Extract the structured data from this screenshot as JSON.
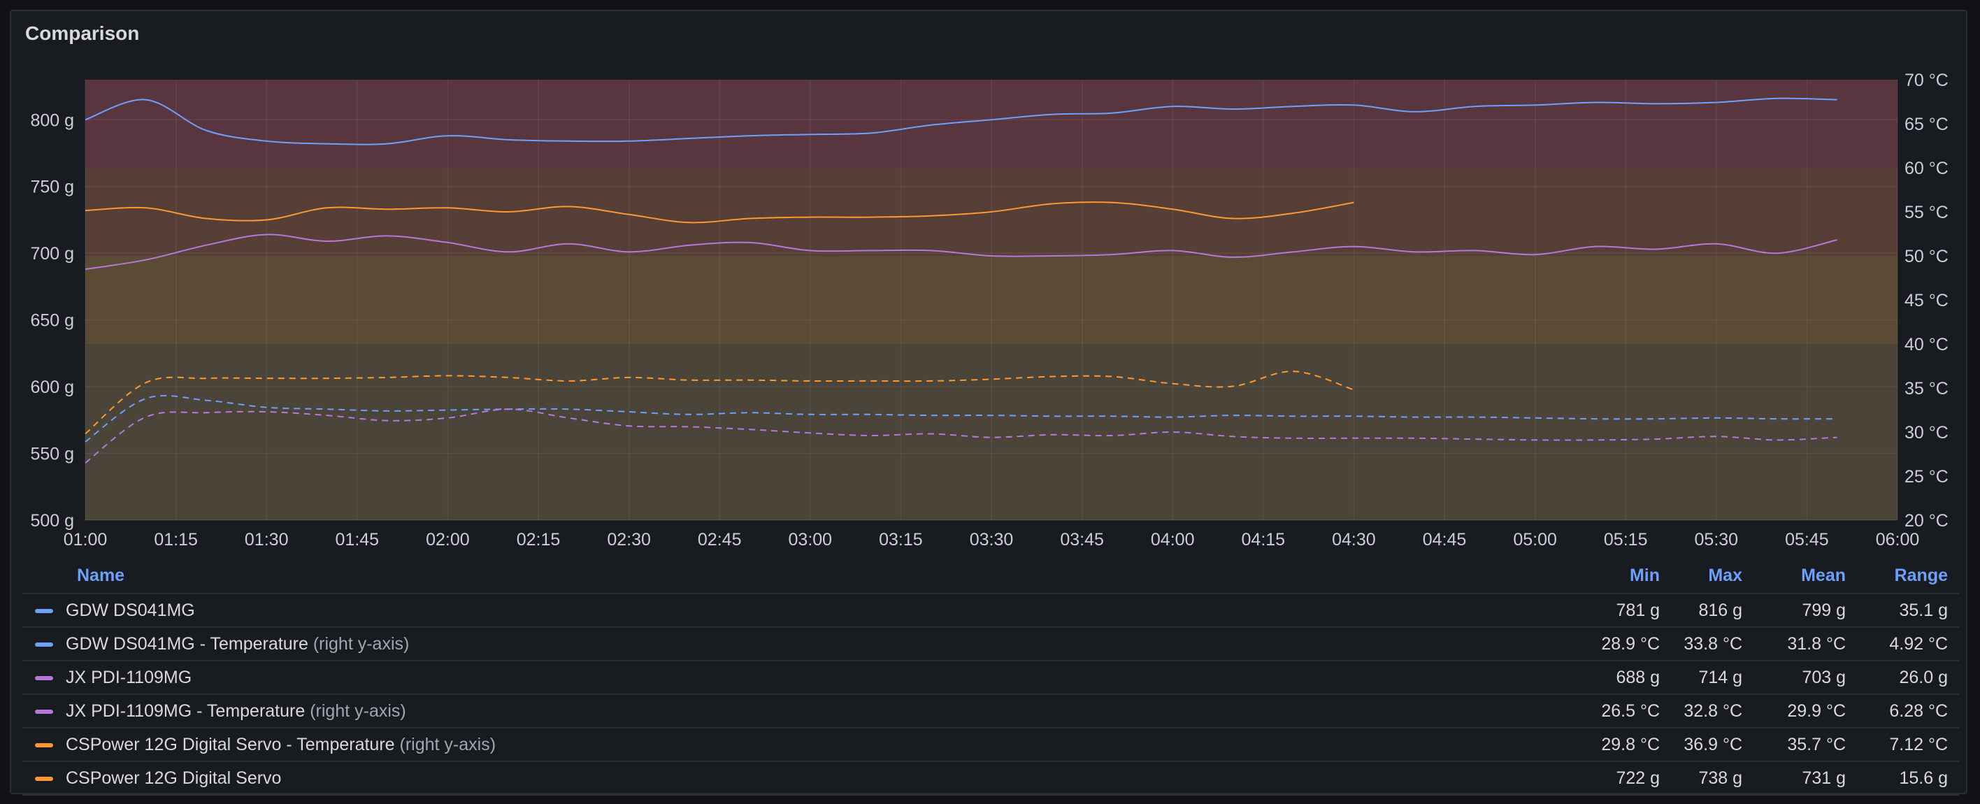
{
  "panel": {
    "title": "Comparison"
  },
  "legend": {
    "headers": {
      "name": "Name",
      "min": "Min",
      "max": "Max",
      "mean": "Mean",
      "range": "Range"
    },
    "rows": [
      {
        "name": "GDW DS041MG",
        "suffix": "",
        "color": "#6e9fff",
        "min": "781 g",
        "max": "816 g",
        "mean": "799 g",
        "range": "35.1 g"
      },
      {
        "name": "GDW DS041MG - Temperature",
        "suffix": "(right y-axis)",
        "color": "#6e9fff",
        "min": "28.9 °C",
        "max": "33.8 °C",
        "mean": "31.8 °C",
        "range": "4.92 °C"
      },
      {
        "name": "JX PDI-1109MG",
        "suffix": "",
        "color": "#b877d9",
        "min": "688 g",
        "max": "714 g",
        "mean": "703 g",
        "range": "26.0 g"
      },
      {
        "name": "JX PDI-1109MG - Temperature",
        "suffix": "(right y-axis)",
        "color": "#b877d9",
        "min": "26.5 °C",
        "max": "32.8 °C",
        "mean": "29.9 °C",
        "range": "6.28 °C"
      },
      {
        "name": "CSPower 12G Digital Servo - Temperature",
        "suffix": "(right y-axis)",
        "color": "#ff9830",
        "min": "29.8 °C",
        "max": "36.9 °C",
        "mean": "35.7 °C",
        "range": "7.12 °C"
      },
      {
        "name": "CSPower 12G Digital Servo",
        "suffix": "",
        "color": "#ff9830",
        "min": "722 g",
        "max": "738 g",
        "mean": "731 g",
        "range": "15.6 g"
      }
    ]
  },
  "chart_data": {
    "type": "line",
    "x_ticks": [
      "01:00",
      "01:15",
      "01:30",
      "01:45",
      "02:00",
      "02:15",
      "02:30",
      "02:45",
      "03:00",
      "03:15",
      "03:30",
      "03:45",
      "04:00",
      "04:15",
      "04:30",
      "04:45",
      "05:00",
      "05:15",
      "05:30",
      "05:45",
      "06:00"
    ],
    "x_range": [
      "01:00",
      "06:00"
    ],
    "y_left": {
      "ticks": [
        "500 g",
        "550 g",
        "600 g",
        "650 g",
        "700 g",
        "750 g",
        "800 g"
      ],
      "min": 500,
      "max": 830,
      "unit": "g"
    },
    "y_right": {
      "ticks": [
        "20 °C",
        "25 °C",
        "30 °C",
        "35 °C",
        "40 °C",
        "45 °C",
        "50 °C",
        "55 °C",
        "60 °C",
        "65 °C",
        "70 °C"
      ],
      "min": 20,
      "max": 70,
      "unit": "°C"
    },
    "threshold_bands": [
      {
        "axis": "right",
        "from": 20,
        "to": 40,
        "color": "#4a4538"
      },
      {
        "axis": "right",
        "from": 40,
        "to": 50,
        "color": "#5b4b35"
      },
      {
        "axis": "right",
        "from": 50,
        "to": 60,
        "color": "#573e37"
      },
      {
        "axis": "right",
        "from": 60,
        "to": 70,
        "color": "#593540"
      }
    ],
    "grid": true,
    "series": [
      {
        "name": "GDW DS041MG",
        "axis": "left",
        "style": "solid",
        "color": "#6e9fff",
        "x": [
          "01:00",
          "01:10",
          "01:20",
          "01:30",
          "01:40",
          "01:50",
          "02:00",
          "02:10",
          "02:20",
          "02:30",
          "02:40",
          "02:50",
          "03:00",
          "03:10",
          "03:20",
          "03:30",
          "03:40",
          "03:50",
          "04:00",
          "04:10",
          "04:20",
          "04:30",
          "04:40",
          "04:50",
          "05:00",
          "05:10",
          "05:20",
          "05:30",
          "05:40",
          "05:50"
        ],
        "y": [
          800,
          815,
          792,
          784,
          782,
          782,
          788,
          785,
          784,
          784,
          786,
          788,
          789,
          790,
          796,
          800,
          804,
          805,
          810,
          808,
          810,
          811,
          806,
          810,
          811,
          813,
          812,
          813,
          816,
          815
        ]
      },
      {
        "name": "CSPower 12G Digital Servo",
        "axis": "left",
        "style": "solid",
        "color": "#ff9830",
        "x": [
          "01:00",
          "01:10",
          "01:20",
          "01:30",
          "01:40",
          "01:50",
          "02:00",
          "02:10",
          "02:20",
          "02:30",
          "02:40",
          "02:50",
          "03:00",
          "03:10",
          "03:20",
          "03:30",
          "03:40",
          "03:50",
          "04:00",
          "04:10",
          "04:20",
          "04:30"
        ],
        "y": [
          732,
          734,
          726,
          725,
          734,
          733,
          734,
          731,
          735,
          729,
          723,
          726,
          727,
          727,
          728,
          731,
          737,
          738,
          733,
          726,
          730,
          738
        ]
      },
      {
        "name": "JX PDI-1109MG",
        "axis": "left",
        "style": "solid",
        "color": "#b877d9",
        "x": [
          "01:00",
          "01:10",
          "01:20",
          "01:30",
          "01:40",
          "01:50",
          "02:00",
          "02:10",
          "02:20",
          "02:30",
          "02:40",
          "02:50",
          "03:00",
          "03:10",
          "03:20",
          "03:30",
          "03:40",
          "03:50",
          "04:00",
          "04:10",
          "04:20",
          "04:30",
          "04:40",
          "04:50",
          "05:00",
          "05:10",
          "05:20",
          "05:30",
          "05:40",
          "05:50"
        ],
        "y": [
          688,
          695,
          706,
          714,
          709,
          713,
          708,
          701,
          707,
          701,
          706,
          708,
          702,
          702,
          702,
          698,
          698,
          699,
          702,
          697,
          701,
          705,
          701,
          702,
          699,
          705,
          703,
          707,
          700,
          710
        ]
      },
      {
        "name": "CSPower 12G Digital Servo - Temperature",
        "axis": "right",
        "style": "dashed",
        "color": "#ff9830",
        "x": [
          "01:00",
          "01:10",
          "01:20",
          "01:30",
          "01:40",
          "01:50",
          "02:00",
          "02:10",
          "02:20",
          "02:30",
          "02:40",
          "02:50",
          "03:00",
          "03:10",
          "03:20",
          "03:30",
          "03:40",
          "03:50",
          "04:00",
          "04:10",
          "04:20",
          "04:30"
        ],
        "y": [
          29.8,
          35.6,
          36.1,
          36.1,
          36.1,
          36.2,
          36.4,
          36.2,
          35.8,
          36.2,
          35.9,
          35.9,
          35.8,
          35.8,
          35.8,
          36.0,
          36.3,
          36.3,
          35.5,
          35.2,
          36.9,
          34.8
        ]
      },
      {
        "name": "GDW DS041MG - Temperature",
        "axis": "right",
        "style": "dashed",
        "color": "#6e9fff",
        "x": [
          "01:00",
          "01:10",
          "01:20",
          "01:30",
          "01:40",
          "01:50",
          "02:00",
          "02:10",
          "02:20",
          "02:30",
          "02:40",
          "02:50",
          "03:00",
          "03:10",
          "03:20",
          "03:30",
          "03:40",
          "03:50",
          "04:00",
          "04:10",
          "04:20",
          "04:30",
          "04:40",
          "04:50",
          "05:00",
          "05:10",
          "05:20",
          "05:30",
          "05:40",
          "05:50"
        ],
        "y": [
          28.9,
          33.8,
          33.6,
          32.8,
          32.6,
          32.4,
          32.5,
          32.6,
          32.6,
          32.3,
          32.0,
          32.2,
          32.0,
          32.0,
          31.9,
          31.9,
          31.8,
          31.8,
          31.7,
          31.9,
          31.8,
          31.8,
          31.7,
          31.7,
          31.6,
          31.5,
          31.5,
          31.6,
          31.5,
          31.5
        ]
      },
      {
        "name": "JX PDI-1109MG - Temperature",
        "axis": "right",
        "style": "dashed",
        "color": "#b877d9",
        "x": [
          "01:00",
          "01:10",
          "01:20",
          "01:30",
          "01:40",
          "01:50",
          "02:00",
          "02:10",
          "02:20",
          "02:30",
          "02:40",
          "02:50",
          "03:00",
          "03:10",
          "03:20",
          "03:30",
          "03:40",
          "03:50",
          "04:00",
          "04:10",
          "04:20",
          "04:30",
          "04:40",
          "04:50",
          "05:00",
          "05:10",
          "05:20",
          "05:30",
          "05:40",
          "05:50"
        ],
        "y": [
          26.5,
          31.7,
          32.2,
          32.3,
          31.9,
          31.3,
          31.6,
          32.6,
          31.6,
          30.7,
          30.6,
          30.3,
          29.9,
          29.6,
          29.8,
          29.4,
          29.7,
          29.6,
          30.0,
          29.5,
          29.3,
          29.3,
          29.3,
          29.2,
          29.1,
          29.1,
          29.2,
          29.5,
          29.1,
          29.4
        ]
      }
    ]
  }
}
